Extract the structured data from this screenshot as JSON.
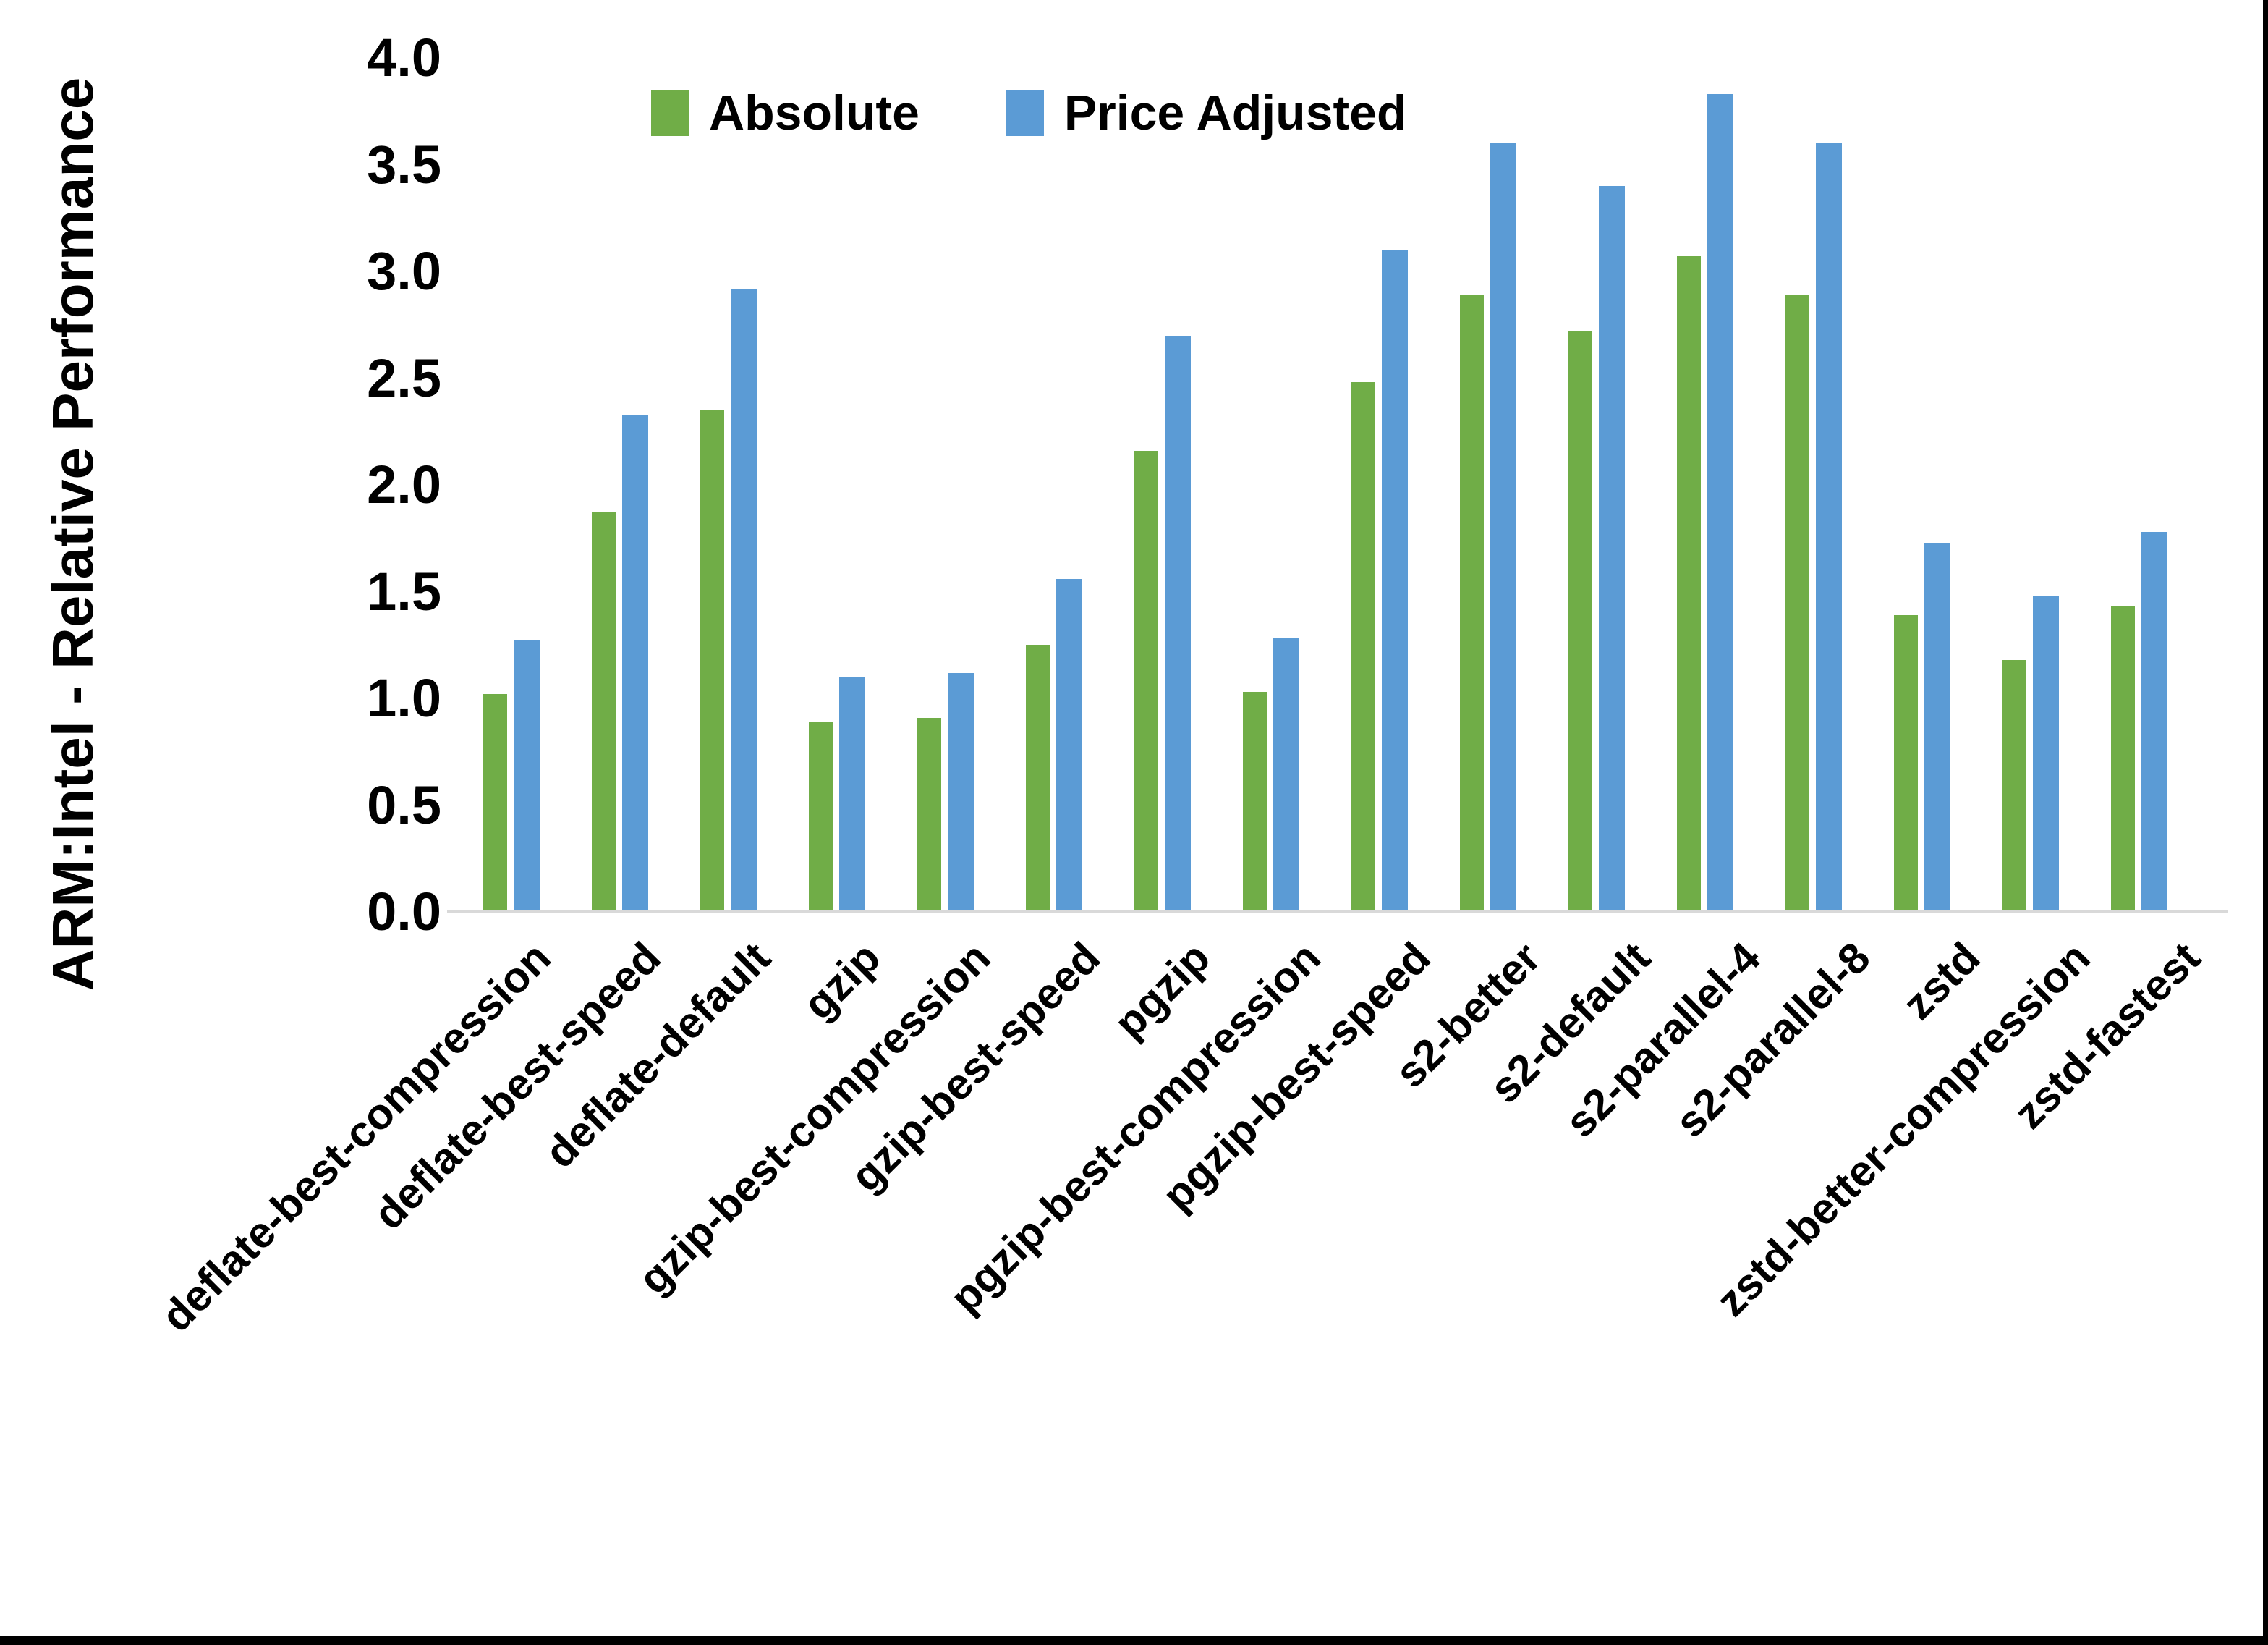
{
  "y_axis": {
    "title": "ARM:Intel - Relative Performance",
    "tick_labels": [
      "4.0",
      "3.5",
      "3.0",
      "2.5",
      "2.0",
      "1.5",
      "1.0",
      "0.5",
      "0.0"
    ],
    "min": 0.0,
    "max": 4.0,
    "tick_step": 0.5
  },
  "legend": {
    "items": [
      {
        "label": "Absolute",
        "color": "#70AD47"
      },
      {
        "label": "Price Adjusted",
        "color": "#5B9BD5"
      }
    ]
  },
  "chart_data": {
    "type": "bar",
    "title": "",
    "xlabel": "",
    "ylabel": "ARM:Intel - Relative Performance",
    "ylim": [
      0.0,
      4.0
    ],
    "grid": false,
    "legend_position": "top-center",
    "axis_line_color": "#d9d9d9",
    "categories": [
      "deflate-best-compression",
      "deflate-best-speed",
      "deflate-default",
      "gzip",
      "gzip-best-compression",
      "gzip-best-speed",
      "pgzip",
      "pgzip-best-compression",
      "pgzip-best-speed",
      "s2-better",
      "s2-default",
      "s2-parallel-4",
      "s2-parallel-8",
      "zstd",
      "zstd-better-compression",
      "zstd-fastest"
    ],
    "series": [
      {
        "name": "Absolute",
        "color": "#70AD47",
        "values": [
          1.02,
          1.87,
          2.35,
          0.89,
          0.91,
          1.25,
          2.16,
          1.03,
          2.48,
          2.89,
          2.72,
          3.07,
          2.89,
          1.39,
          1.18,
          1.43
        ]
      },
      {
        "name": "Price Adjusted",
        "color": "#5B9BD5",
        "values": [
          1.27,
          2.33,
          2.92,
          1.1,
          1.12,
          1.56,
          2.7,
          1.28,
          3.1,
          3.6,
          3.4,
          3.83,
          3.6,
          1.73,
          1.48,
          1.78
        ]
      }
    ]
  }
}
